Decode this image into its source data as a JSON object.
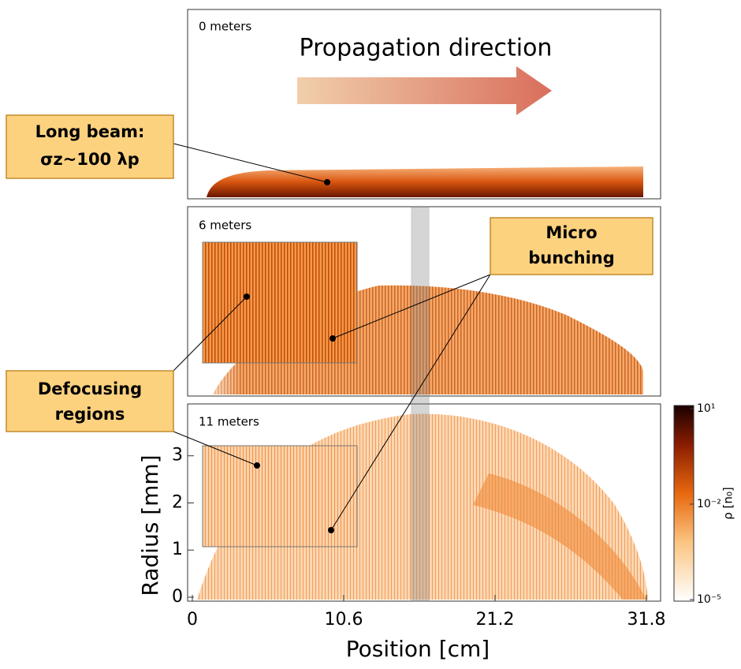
{
  "chart_data": {
    "type": "density",
    "panels": [
      "0 meters",
      "6 meters",
      "11 meters"
    ],
    "arrow_label": "Propagation direction",
    "callouts": [
      {
        "lines": [
          "Long beam:",
          "σz~100 λp"
        ]
      },
      {
        "lines": [
          "Micro",
          "bunching"
        ]
      },
      {
        "lines": [
          "Defocusing",
          "regions"
        ]
      }
    ],
    "xlabel": "Position [cm]",
    "xlim": [
      0,
      31.8
    ],
    "xticks": [
      0,
      10.6,
      21.2,
      31.8
    ],
    "ylabel": "Radius [mm]",
    "ylim": [
      0,
      4.1
    ],
    "yticks": [
      0,
      1,
      2,
      3
    ],
    "colorbar": {
      "label": "ρ [n₀]",
      "log": true,
      "lim": [
        1e-05,
        10
      ],
      "ticks": [
        {
          "value": 10,
          "label": "10¹"
        },
        {
          "value": 0.01,
          "label": "10⁻²"
        },
        {
          "value": 1e-05,
          "label": "10⁻⁵"
        }
      ]
    }
  }
}
